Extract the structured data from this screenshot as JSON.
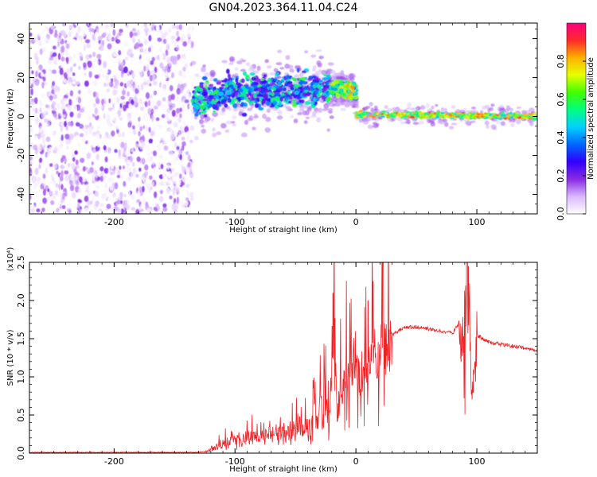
{
  "title": "GN04.2023.364.11.04.C24",
  "chart_data": [
    {
      "type": "heatmap",
      "xlabel": "Height of straight line (km)",
      "ylabel": "Frequency (Hz)",
      "xlim": [
        -270,
        150
      ],
      "ylim": [
        -50,
        48
      ],
      "xticks": [
        -200,
        -100,
        0,
        100
      ],
      "yticks": [
        -40,
        -20,
        0,
        20,
        40
      ],
      "colorbar": {
        "label": "Normalized spectral amplitude",
        "range": [
          0,
          1
        ],
        "ticks": [
          0.0,
          0.2,
          0.4,
          0.6,
          0.8
        ],
        "colormap": [
          "#ffffff",
          "#d9b8ff",
          "#8a2be2",
          "#3000ff",
          "#0066ff",
          "#00d0ff",
          "#00ff80",
          "#40ff00",
          "#e6ff00",
          "#ffb000",
          "#ff2a2a",
          "#ff0080"
        ]
      },
      "regions": [
        {
          "x_range": [
            -270,
            -135
          ],
          "freq_range": [
            -50,
            48
          ],
          "character": "scattered noise, low amplitude"
        },
        {
          "x_range": [
            -135,
            -20
          ],
          "freq_center": [
            [
              -135,
              8
            ],
            [
              -100,
              12
            ],
            [
              -60,
              14
            ],
            [
              -20,
              14
            ]
          ],
          "freq_halfwidth": 7,
          "character": "broad signal"
        },
        {
          "x_range": [
            -20,
            0
          ],
          "freq_center": [
            [
              -20,
              15
            ],
            [
              0,
              13
            ]
          ],
          "freq_halfwidth": 3,
          "character": "narrowing signal"
        },
        {
          "x_range": [
            0,
            150
          ],
          "freq_center": [
            [
              0,
              1
            ],
            [
              150,
              0
            ]
          ],
          "freq_halfwidth": 2,
          "character": "narrow strong line near 0 Hz"
        }
      ]
    },
    {
      "type": "line",
      "xlabel": "Height of straight line (km)",
      "ylabel": "SNR (10 * v/v)",
      "y_multiplier": "(x10⁴)",
      "xlim": [
        -270,
        150
      ],
      "ylim": [
        0,
        2.5
      ],
      "xticks": [
        -200,
        -100,
        0,
        100
      ],
      "yticks": [
        0.0,
        0.5,
        1.0,
        1.5,
        2.0,
        2.5
      ],
      "series": [
        {
          "color": "#ee2222",
          "x": [
            -270,
            -130,
            -122,
            -112,
            -100,
            -80,
            -60,
            -40,
            -30,
            -20,
            -18,
            -16,
            -10,
            -5,
            0,
            5,
            10,
            20,
            30,
            40,
            50,
            60,
            70,
            80,
            85,
            88,
            92,
            95,
            97,
            100,
            110,
            130,
            150
          ],
          "y": [
            0.01,
            0.01,
            0.03,
            0.12,
            0.2,
            0.25,
            0.3,
            0.4,
            0.55,
            0.8,
            2.05,
            0.55,
            1.0,
            1.15,
            1.35,
            0.9,
            1.25,
            1.45,
            1.55,
            1.65,
            1.65,
            1.63,
            1.6,
            1.57,
            1.7,
            1.5,
            2.4,
            1.1,
            0.9,
            1.55,
            1.45,
            1.4,
            1.35
          ]
        }
      ],
      "spikes": [
        {
          "x": -19,
          "y": 2.1
        },
        {
          "x": 10,
          "y": 2.0
        },
        {
          "x": 93,
          "y": 2.45
        },
        {
          "x": 97,
          "y": 0.8
        }
      ]
    }
  ]
}
